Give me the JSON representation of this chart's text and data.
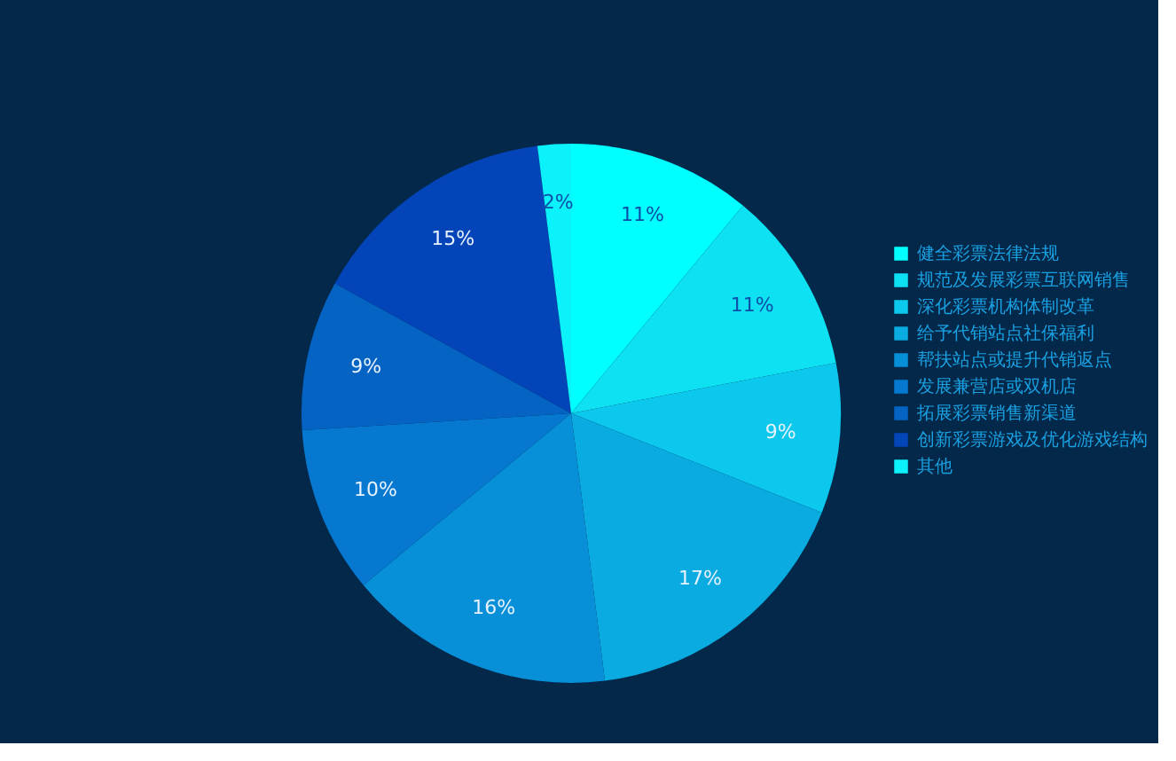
{
  "chart_data": {
    "type": "pie",
    "categories": [
      "健全彩票法律法规",
      "规范及发展彩票互联网销售",
      "深化彩票机构体制改革",
      "给予代销站点社保福利",
      "帮扶站点或提升代销返点",
      "发展兼营店或双机店",
      "拓展彩票销售新渠道",
      "创新彩票游戏及优化游戏结构",
      "其他"
    ],
    "values": [
      11,
      11,
      9,
      17,
      16,
      10,
      9,
      15,
      2
    ],
    "colors": [
      "#00ffff",
      "#0ee1f2",
      "#0cc8ec",
      "#09abe0",
      "#078fd8",
      "#0678d0",
      "#0563c3",
      "#0345b8",
      "#0cf2fa"
    ],
    "value_labels": [
      "11%",
      "11%",
      "9%",
      "17%",
      "16%",
      "10%",
      "9%",
      "15%",
      "2%"
    ],
    "legend": "right"
  }
}
